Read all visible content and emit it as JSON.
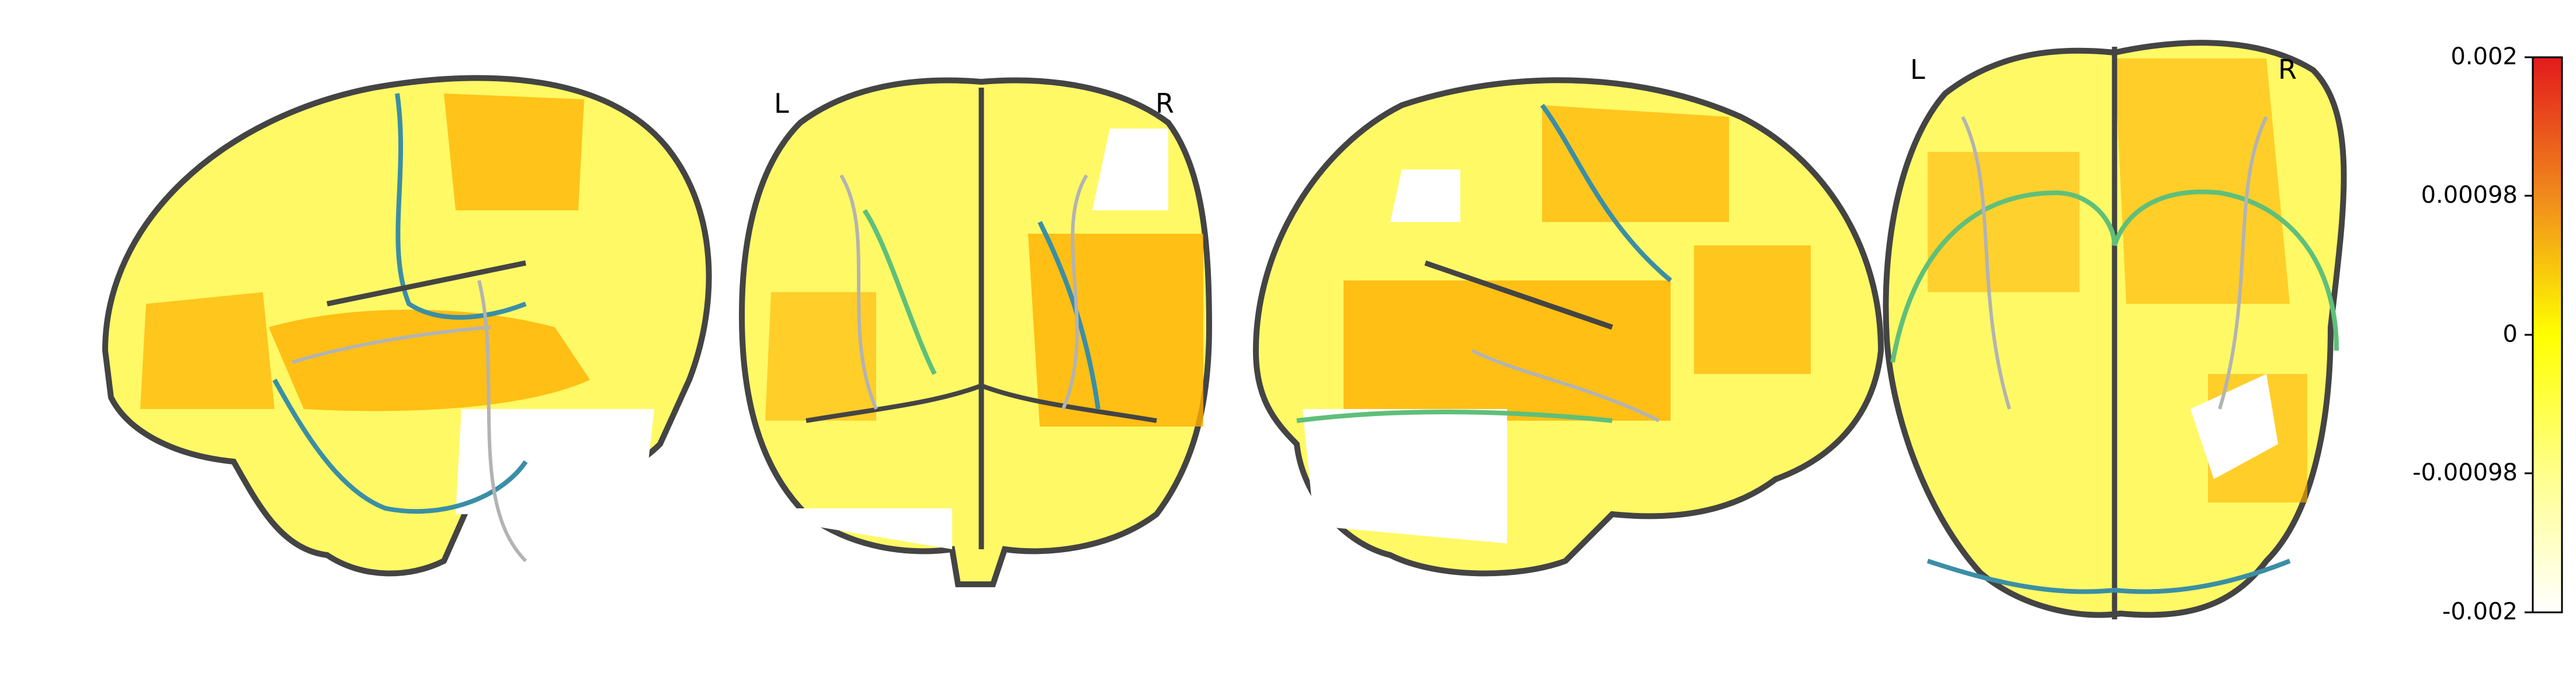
{
  "views": {
    "coronal": {
      "left_label": "L",
      "right_label": "R"
    },
    "axial": {
      "left_label": "L",
      "right_label": "R"
    }
  },
  "colorbar": {
    "ticks": [
      "0.002",
      "0.00098",
      "0",
      "-0.00098",
      "-0.002"
    ],
    "colors": {
      "top": "#e31a1c",
      "upper": "#f08a1c",
      "mid": "#ffff00",
      "lower": "#ffffcc",
      "bottom": "#ffffff"
    }
  },
  "colors": {
    "outline": "#444444",
    "gyri": "#b3b3b3",
    "parcel_edge": "#3b8ea5",
    "parcel_edge_alt": "#5fbf7a"
  }
}
